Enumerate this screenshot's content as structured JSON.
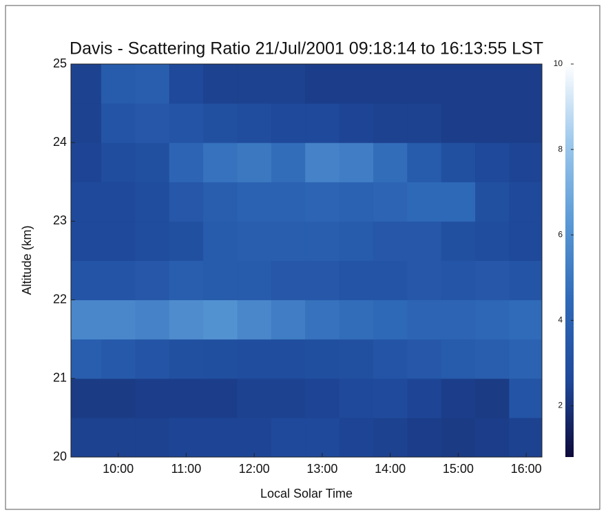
{
  "chart_data": {
    "type": "heatmap",
    "title": "Davis - Scattering Ratio 21/Jul/2001 09:18:14 to 16:13:55 LST",
    "x_label": "Local Solar Time",
    "y_label": "Altitude (km)",
    "xlim": [
      9.305,
      16.232
    ],
    "ylim": [
      20,
      25
    ],
    "xticks": [
      {
        "value": 10,
        "label": "10:00"
      },
      {
        "value": 11,
        "label": "11:00"
      },
      {
        "value": 12,
        "label": "12:00"
      },
      {
        "value": 13,
        "label": "13:00"
      },
      {
        "value": 14,
        "label": "14:00"
      },
      {
        "value": 15,
        "label": "15:00"
      },
      {
        "value": 16,
        "label": "16:00"
      }
    ],
    "yticks": [
      20,
      21,
      22,
      23,
      24,
      25
    ],
    "x_bins": [
      9.305,
      9.75,
      10.25,
      10.75,
      11.25,
      11.75,
      12.25,
      12.75,
      13.25,
      13.75,
      14.25,
      14.75,
      15.25,
      15.75,
      16.232
    ],
    "y_bins": [
      20,
      20.5,
      21,
      21.5,
      22,
      22.5,
      23,
      23.5,
      24,
      24.5,
      25
    ],
    "z": [
      [
        2.4,
        2.4,
        2.4,
        2.5,
        2.5,
        2.5,
        2.6,
        2.6,
        2.5,
        2.4,
        2.3,
        2.2,
        2.3,
        2.4
      ],
      [
        2.2,
        2.2,
        2.3,
        2.3,
        2.3,
        2.4,
        2.4,
        2.5,
        2.6,
        2.7,
        2.5,
        2.3,
        2.2,
        3.2
      ],
      [
        3.8,
        3.5,
        3.2,
        3.0,
        2.9,
        2.8,
        2.8,
        2.9,
        3.0,
        3.2,
        3.4,
        3.6,
        3.8,
        4.0
      ],
      [
        5.6,
        5.6,
        5.4,
        5.8,
        6.0,
        5.6,
        5.2,
        4.8,
        4.6,
        4.4,
        4.2,
        4.2,
        4.3,
        4.5
      ],
      [
        3.2,
        3.2,
        3.4,
        3.8,
        3.6,
        3.6,
        3.4,
        3.4,
        3.2,
        3.2,
        3.4,
        3.3,
        3.4,
        3.2
      ],
      [
        2.6,
        2.6,
        2.8,
        3.0,
        3.6,
        3.8,
        3.8,
        3.8,
        3.6,
        3.4,
        3.4,
        3.0,
        2.8,
        2.6
      ],
      [
        2.6,
        2.6,
        2.8,
        3.4,
        3.8,
        4.0,
        4.0,
        4.2,
        4.0,
        4.2,
        4.4,
        4.4,
        3.0,
        2.6
      ],
      [
        2.5,
        2.8,
        3.0,
        4.2,
        4.8,
        5.0,
        4.6,
        5.4,
        5.2,
        4.6,
        3.6,
        3.0,
        2.6,
        2.5
      ],
      [
        2.4,
        3.2,
        3.4,
        3.2,
        3.0,
        2.8,
        2.6,
        2.6,
        2.5,
        2.4,
        2.4,
        2.3,
        2.3,
        2.3
      ],
      [
        2.4,
        3.6,
        3.8,
        2.6,
        2.4,
        2.4,
        2.4,
        2.3,
        2.3,
        2.3,
        2.3,
        2.3,
        2.3,
        2.3
      ]
    ],
    "clim": [
      0.8,
      10
    ],
    "cticks": [
      2,
      4,
      6,
      8,
      10
    ],
    "colormap": [
      "#0d0a3a",
      "#1f4a9c",
      "#2f6ab8",
      "#5a9ad6",
      "#9cc8ec",
      "#ffffff"
    ]
  }
}
